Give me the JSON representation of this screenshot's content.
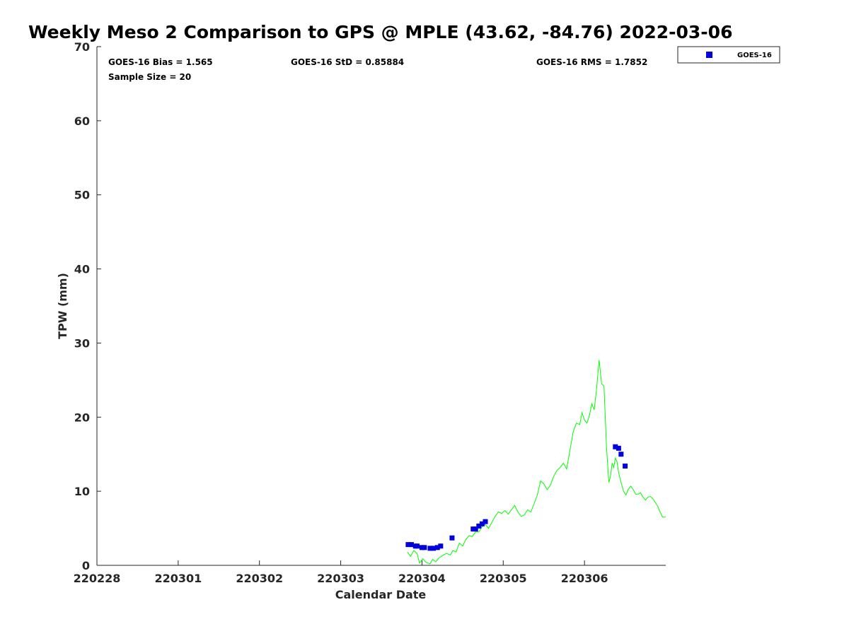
{
  "chart_data": {
    "type": "scatter",
    "title": "Weekly Meso 2 Comparison to GPS @ MPLE (43.62, -84.76) 2022-03-06",
    "xlabel": "Calendar Date",
    "ylabel": "TPW (mm)",
    "xlim": [
      0,
      7
    ],
    "ylim": [
      0,
      70
    ],
    "x_ticks": [
      0,
      1,
      2,
      3,
      4,
      5,
      6
    ],
    "x_tick_labels": [
      "220228",
      "220301",
      "220302",
      "220303",
      "220304",
      "220305",
      "220306"
    ],
    "y_ticks": [
      0,
      10,
      20,
      30,
      40,
      50,
      60,
      70
    ],
    "y_tick_labels": [
      "0",
      "10",
      "20",
      "30",
      "40",
      "50",
      "60",
      "70"
    ],
    "grid": false,
    "legend_position": "outside-top-right",
    "stats": [
      "GOES-16 Bias = 1.565",
      "GOES-16 StD = 0.85884",
      "GOES-16 RMS = 1.7852",
      "Sample Size = 20"
    ],
    "series": [
      {
        "name": "GOES-16",
        "marker": "square",
        "color": "#0000dd",
        "x": [
          3.83,
          3.87,
          3.92,
          3.94,
          4.0,
          4.03,
          4.1,
          4.14,
          4.19,
          4.23,
          4.37,
          4.63,
          4.66,
          4.7,
          4.74,
          4.78,
          6.38,
          6.42,
          6.45,
          6.5
        ],
        "y": [
          2.8,
          2.8,
          2.6,
          2.6,
          2.4,
          2.4,
          2.3,
          2.3,
          2.4,
          2.6,
          3.7,
          4.9,
          4.9,
          5.3,
          5.6,
          5.9,
          16.0,
          15.8,
          15.0,
          13.4
        ]
      },
      {
        "color": "#00ff00",
        "line": true,
        "x": [
          3.82,
          3.86,
          3.9,
          3.94,
          3.97,
          3.99,
          4.01,
          4.05,
          4.1,
          4.13,
          4.17,
          4.21,
          4.25,
          4.3,
          4.35,
          4.38,
          4.42,
          4.46,
          4.5,
          4.54,
          4.58,
          4.62,
          4.66,
          4.7,
          4.74,
          4.78,
          4.82,
          4.86,
          4.9,
          4.94,
          4.98,
          5.02,
          5.06,
          5.1,
          5.14,
          5.18,
          5.22,
          5.26,
          5.3,
          5.34,
          5.38,
          5.42,
          5.46,
          5.5,
          5.54,
          5.58,
          5.62,
          5.66,
          5.7,
          5.74,
          5.78,
          5.82,
          5.86,
          5.9,
          5.94,
          5.97,
          6.0,
          6.03,
          6.06,
          6.09,
          6.12,
          6.15,
          6.18,
          6.21,
          6.24,
          6.27,
          6.3,
          6.32,
          6.34,
          6.36,
          6.38,
          6.4,
          6.42,
          6.45,
          6.48,
          6.51,
          6.54,
          6.57,
          6.6,
          6.63,
          6.66,
          6.69,
          6.72,
          6.75,
          6.78,
          6.81,
          6.84,
          6.87,
          6.9,
          6.93,
          6.96,
          6.98,
          7.0
        ],
        "y": [
          1.8,
          1.2,
          2.0,
          1.6,
          0.3,
          0.6,
          0.9,
          0.4,
          0.2,
          0.8,
          0.5,
          1.0,
          1.3,
          1.6,
          1.4,
          2.0,
          1.8,
          3.0,
          2.6,
          3.5,
          4.0,
          3.9,
          4.5,
          4.5,
          5.2,
          5.5,
          5.0,
          5.8,
          6.6,
          7.2,
          7.0,
          7.4,
          6.9,
          7.5,
          8.1,
          7.2,
          6.6,
          6.8,
          7.5,
          7.2,
          8.3,
          9.5,
          11.4,
          11.0,
          10.2,
          10.8,
          12.0,
          12.8,
          13.2,
          13.8,
          13.0,
          15.5,
          18.0,
          19.2,
          19.0,
          20.6,
          19.6,
          19.2,
          20.2,
          21.8,
          21.0,
          24.0,
          27.7,
          24.5,
          24.2,
          16.0,
          11.2,
          12.0,
          13.8,
          13.2,
          14.5,
          14.0,
          12.5,
          11.2,
          10.0,
          9.5,
          10.3,
          10.7,
          10.2,
          9.6,
          9.6,
          9.8,
          9.2,
          8.8,
          9.2,
          9.3,
          9.0,
          8.5,
          8.0,
          7.2,
          6.5,
          6.5,
          6.5
        ]
      }
    ]
  }
}
